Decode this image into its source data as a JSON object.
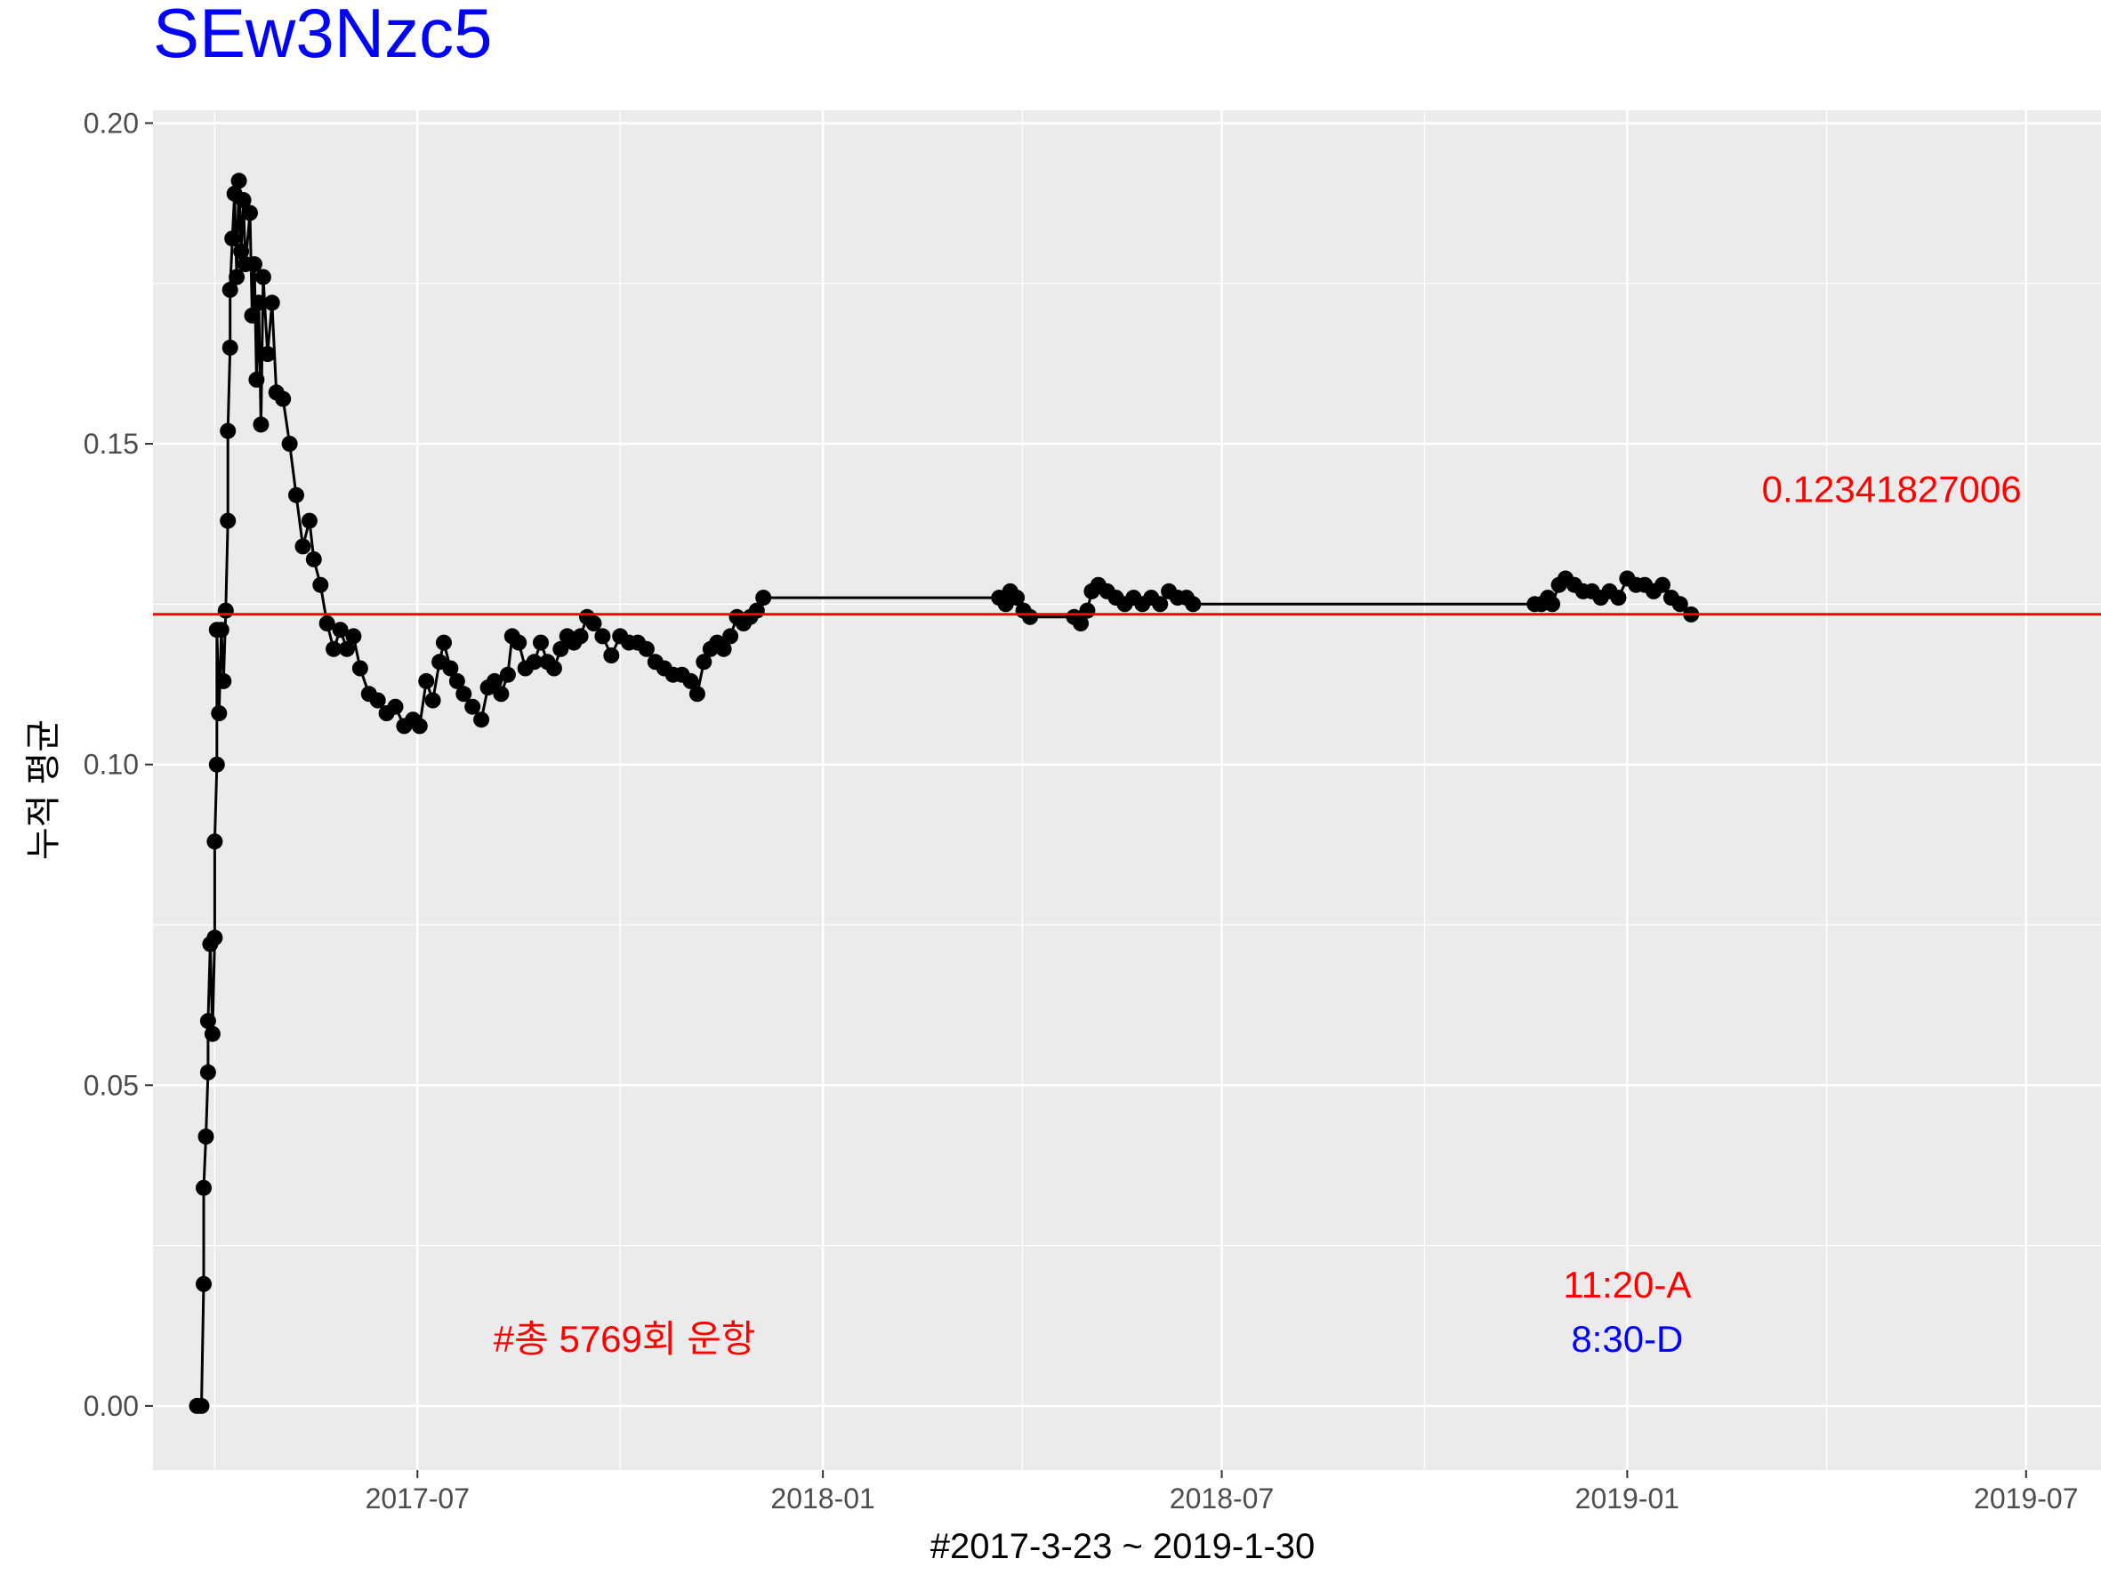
{
  "chart_data": {
    "type": "line",
    "title": "SEw3Nzc5",
    "xlabel": "#2017-3-23 ~ 2019-1-30",
    "ylabel": "누적 평균",
    "xlim": [
      "2017-03-03",
      "2019-08-04"
    ],
    "ylim": [
      -0.01,
      0.202
    ],
    "x_ticks": [
      "2017-07",
      "2018-01",
      "2018-07",
      "2019-01",
      "2019-07"
    ],
    "y_ticks": [
      "0.00",
      "0.05",
      "0.10",
      "0.15",
      "0.20"
    ],
    "grid": true,
    "series": [
      {
        "color": "#000000",
        "points": [
          [
            "2017-03-23",
            0.0
          ],
          [
            "2017-03-25",
            0.0
          ],
          [
            "2017-03-26",
            0.019
          ],
          [
            "2017-03-26",
            0.034
          ],
          [
            "2017-03-27",
            0.042
          ],
          [
            "2017-03-28",
            0.052
          ],
          [
            "2017-03-28",
            0.06
          ],
          [
            "2017-03-29",
            0.072
          ],
          [
            "2017-03-30",
            0.058
          ],
          [
            "2017-03-31",
            0.073
          ],
          [
            "2017-03-31",
            0.088
          ],
          [
            "2017-04-01",
            0.1
          ],
          [
            "2017-04-01",
            0.121
          ],
          [
            "2017-04-02",
            0.108
          ],
          [
            "2017-04-03",
            0.121
          ],
          [
            "2017-04-04",
            0.113
          ],
          [
            "2017-04-05",
            0.124
          ],
          [
            "2017-04-06",
            0.138
          ],
          [
            "2017-04-06",
            0.152
          ],
          [
            "2017-04-07",
            0.165
          ],
          [
            "2017-04-07",
            0.174
          ],
          [
            "2017-04-08",
            0.182
          ],
          [
            "2017-04-09",
            0.189
          ],
          [
            "2017-04-10",
            0.176
          ],
          [
            "2017-04-11",
            0.191
          ],
          [
            "2017-04-12",
            0.18
          ],
          [
            "2017-04-13",
            0.188
          ],
          [
            "2017-04-14",
            0.178
          ],
          [
            "2017-04-16",
            0.186
          ],
          [
            "2017-04-17",
            0.17
          ],
          [
            "2017-04-18",
            0.178
          ],
          [
            "2017-04-19",
            0.16
          ],
          [
            "2017-04-20",
            0.172
          ],
          [
            "2017-04-21",
            0.153
          ],
          [
            "2017-04-22",
            0.176
          ],
          [
            "2017-04-24",
            0.164
          ],
          [
            "2017-04-26",
            0.172
          ],
          [
            "2017-04-28",
            0.158
          ],
          [
            "2017-05-01",
            0.157
          ],
          [
            "2017-05-04",
            0.15
          ],
          [
            "2017-05-07",
            0.142
          ],
          [
            "2017-05-10",
            0.134
          ],
          [
            "2017-05-13",
            0.138
          ],
          [
            "2017-05-15",
            0.132
          ],
          [
            "2017-05-18",
            0.128
          ],
          [
            "2017-05-21",
            0.122
          ],
          [
            "2017-05-24",
            0.118
          ],
          [
            "2017-05-27",
            0.121
          ],
          [
            "2017-05-30",
            0.118
          ],
          [
            "2017-06-02",
            0.12
          ],
          [
            "2017-06-05",
            0.115
          ],
          [
            "2017-06-09",
            0.111
          ],
          [
            "2017-06-13",
            0.11
          ],
          [
            "2017-06-17",
            0.108
          ],
          [
            "2017-06-21",
            0.109
          ],
          [
            "2017-06-25",
            0.106
          ],
          [
            "2017-06-29",
            0.107
          ],
          [
            "2017-07-02",
            0.106
          ],
          [
            "2017-07-05",
            0.113
          ],
          [
            "2017-07-08",
            0.11
          ],
          [
            "2017-07-11",
            0.116
          ],
          [
            "2017-07-13",
            0.119
          ],
          [
            "2017-07-16",
            0.115
          ],
          [
            "2017-07-19",
            0.113
          ],
          [
            "2017-07-22",
            0.111
          ],
          [
            "2017-07-26",
            0.109
          ],
          [
            "2017-07-30",
            0.107
          ],
          [
            "2017-08-02",
            0.112
          ],
          [
            "2017-08-05",
            0.113
          ],
          [
            "2017-08-08",
            0.111
          ],
          [
            "2017-08-11",
            0.114
          ],
          [
            "2017-08-13",
            0.12
          ],
          [
            "2017-08-16",
            0.119
          ],
          [
            "2017-08-19",
            0.115
          ],
          [
            "2017-08-23",
            0.116
          ],
          [
            "2017-08-26",
            0.119
          ],
          [
            "2017-08-29",
            0.116
          ],
          [
            "2017-09-01",
            0.115
          ],
          [
            "2017-09-04",
            0.118
          ],
          [
            "2017-09-07",
            0.12
          ],
          [
            "2017-09-10",
            0.119
          ],
          [
            "2017-09-13",
            0.12
          ],
          [
            "2017-09-16",
            0.123
          ],
          [
            "2017-09-19",
            0.122
          ],
          [
            "2017-09-23",
            0.12
          ],
          [
            "2017-09-27",
            0.117
          ],
          [
            "2017-10-01",
            0.12
          ],
          [
            "2017-10-05",
            0.119
          ],
          [
            "2017-10-09",
            0.119
          ],
          [
            "2017-10-13",
            0.118
          ],
          [
            "2017-10-17",
            0.116
          ],
          [
            "2017-10-21",
            0.115
          ],
          [
            "2017-10-25",
            0.114
          ],
          [
            "2017-10-29",
            0.114
          ],
          [
            "2017-11-02",
            0.113
          ],
          [
            "2017-11-05",
            0.111
          ],
          [
            "2017-11-08",
            0.116
          ],
          [
            "2017-11-11",
            0.118
          ],
          [
            "2017-11-14",
            0.119
          ],
          [
            "2017-11-17",
            0.118
          ],
          [
            "2017-11-20",
            0.12
          ],
          [
            "2017-11-23",
            0.123
          ],
          [
            "2017-11-26",
            0.122
          ],
          [
            "2017-11-29",
            0.123
          ],
          [
            "2017-12-02",
            0.124
          ],
          [
            "2017-12-05",
            0.126
          ],
          [
            "2018-03-22",
            0.126
          ],
          [
            "2018-03-25",
            0.125
          ],
          [
            "2018-03-27",
            0.127
          ],
          [
            "2018-03-30",
            0.126
          ],
          [
            "2018-04-02",
            0.124
          ],
          [
            "2018-04-05",
            0.123
          ],
          [
            "2018-04-25",
            0.123
          ],
          [
            "2018-04-28",
            0.122
          ],
          [
            "2018-05-01",
            0.124
          ],
          [
            "2018-05-03",
            0.127
          ],
          [
            "2018-05-06",
            0.128
          ],
          [
            "2018-05-10",
            0.127
          ],
          [
            "2018-05-14",
            0.126
          ],
          [
            "2018-05-18",
            0.125
          ],
          [
            "2018-05-22",
            0.126
          ],
          [
            "2018-05-26",
            0.125
          ],
          [
            "2018-05-30",
            0.126
          ],
          [
            "2018-06-03",
            0.125
          ],
          [
            "2018-06-07",
            0.127
          ],
          [
            "2018-06-11",
            0.126
          ],
          [
            "2018-06-15",
            0.126
          ],
          [
            "2018-06-18",
            0.125
          ],
          [
            "2018-11-20",
            0.125
          ],
          [
            "2018-11-23",
            0.125
          ],
          [
            "2018-11-26",
            0.126
          ],
          [
            "2018-11-28",
            0.125
          ],
          [
            "2018-12-01",
            0.128
          ],
          [
            "2018-12-04",
            0.129
          ],
          [
            "2018-12-08",
            0.128
          ],
          [
            "2018-12-12",
            0.127
          ],
          [
            "2018-12-16",
            0.127
          ],
          [
            "2018-12-20",
            0.126
          ],
          [
            "2018-12-24",
            0.127
          ],
          [
            "2018-12-28",
            0.126
          ],
          [
            "2019-01-01",
            0.129
          ],
          [
            "2019-01-05",
            0.128
          ],
          [
            "2019-01-09",
            0.128
          ],
          [
            "2019-01-13",
            0.127
          ],
          [
            "2019-01-17",
            0.128
          ],
          [
            "2019-01-21",
            0.126
          ],
          [
            "2019-01-25",
            0.125
          ],
          [
            "2019-01-30",
            0.1234
          ]
        ]
      }
    ],
    "hline": {
      "y": 0.12341827006,
      "color": "#ff0000"
    },
    "annotations": [
      {
        "text": "0.12341827006",
        "x": "2019-05-01",
        "y": 0.143,
        "color": "#ff0000"
      },
      {
        "text": "11:20-A",
        "x": "2019-01-01",
        "y": 0.019,
        "color": "#ff0000"
      },
      {
        "text": "8:30-D",
        "x": "2019-01-01",
        "y": 0.0105,
        "color": "#0000ff"
      },
      {
        "text": "#총 5769회 운항",
        "x": "2017-10-03",
        "y": 0.0105,
        "color": "#ff0000"
      }
    ],
    "colors": {
      "panel": "#ebebeb",
      "grid": "#ffffff",
      "line": "#000000",
      "mean_line": "#ff0000",
      "title": "#0000ff"
    }
  }
}
